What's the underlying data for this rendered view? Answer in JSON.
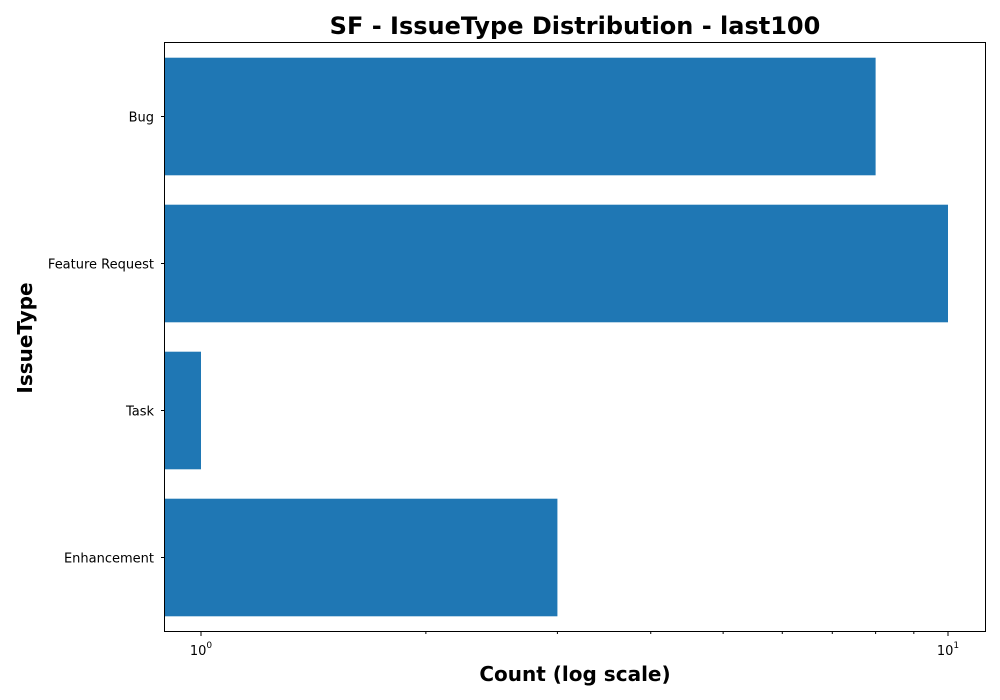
{
  "chart_data": {
    "type": "bar",
    "orientation": "horizontal",
    "title": "SF - IssueType Distribution - last100",
    "xlabel": "Count (log scale)",
    "ylabel": "IssueType",
    "xscale": "log",
    "xlim": [
      0.95,
      11.5
    ],
    "categories": [
      "Bug",
      "Feature Request",
      "Task",
      "Enhancement"
    ],
    "values": [
      8,
      10,
      1,
      3
    ],
    "x_major_ticks": [
      {
        "value": 1,
        "base": "10",
        "exp": "0"
      },
      {
        "value": 10,
        "base": "10",
        "exp": "1"
      }
    ],
    "x_minor_ticks": [
      2,
      3,
      4,
      5,
      6,
      7,
      8,
      9
    ],
    "bar_color": "#1f77b4",
    "grid": false
  }
}
